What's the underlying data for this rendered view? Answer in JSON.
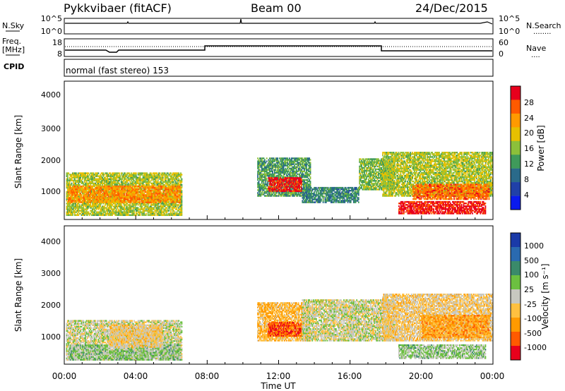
{
  "header": {
    "radar": "Pykkvibaer (fitACF)",
    "beam": "Beam 00",
    "date": "24/Dec/2015"
  },
  "nsky_panel": {
    "left_label": "N.Sky",
    "left_ticks": [
      "10^5",
      "10^0"
    ],
    "right_ticks": [
      "10^5",
      "10^0"
    ],
    "right_label": "N.Search",
    "right_legend_marker": "........"
  },
  "freq_panel": {
    "left_label_line1": "Freq.",
    "left_label_line2": "[MHz]",
    "left_ticks": [
      "18",
      "8"
    ],
    "right_ticks": [
      "60",
      "0"
    ],
    "right_label": "Nave",
    "right_legend_marker": "....",
    "cpid_label": "CPID"
  },
  "cpid_text": "normal (fast stereo) 153",
  "axes": {
    "ylabel": "Slant Range [km]",
    "yticks": [
      "4000",
      "3000",
      "2000",
      "1000"
    ],
    "xticks": [
      "00:00",
      "04:00",
      "08:00",
      "12:00",
      "16:00",
      "20:00",
      "00:00"
    ],
    "xlabel": "Time UT"
  },
  "power_scale": {
    "title": "Power [dB]",
    "labels": [
      "28",
      "24",
      "20",
      "16",
      "12",
      "8",
      "4"
    ],
    "colors": [
      "#e8001c",
      "#ff5a00",
      "#ff9a00",
      "#e6c000",
      "#8cc03a",
      "#3f9a5a",
      "#2a6a8a",
      "#2040a8",
      "#0a1aee"
    ]
  },
  "velocity_scale": {
    "title": "Velocity [m s⁻¹]",
    "labels": [
      "1000",
      "500",
      "100",
      "25",
      "-25",
      "-100",
      "-500",
      "-1000"
    ],
    "colors": [
      "#1a3aa8",
      "#2a6ab0",
      "#3a8a6a",
      "#6cc040",
      "#c8c8c0",
      "#ffc040",
      "#ff9a00",
      "#ff5a00",
      "#e8001c"
    ]
  },
  "chart_data": [
    {
      "type": "heatmap",
      "panel": "power",
      "x_unit": "hours UT",
      "y_unit": "km",
      "xlim": [
        0,
        24
      ],
      "ylim": [
        180,
        4500
      ],
      "value_range_db": [
        0,
        30
      ],
      "regions": [
        {
          "t0": 0.1,
          "t1": 6.6,
          "r0": 300,
          "r1": 1650,
          "value": 16
        },
        {
          "t0": 0.2,
          "t1": 6.5,
          "r0": 700,
          "r1": 1250,
          "value": 22
        },
        {
          "t0": 10.8,
          "t1": 13.8,
          "r0": 900,
          "r1": 2100,
          "value": 12
        },
        {
          "t0": 11.4,
          "t1": 13.3,
          "r0": 1050,
          "r1": 1500,
          "value": 28
        },
        {
          "t0": 13.3,
          "t1": 16.5,
          "r0": 700,
          "r1": 1200,
          "value": 10
        },
        {
          "t0": 16.5,
          "t1": 18.5,
          "r0": 1100,
          "r1": 2100,
          "value": 14
        },
        {
          "t0": 17.8,
          "t1": 24.0,
          "r0": 900,
          "r1": 2300,
          "value": 16
        },
        {
          "t0": 18.7,
          "t1": 23.6,
          "r0": 350,
          "r1": 750,
          "value": 28
        },
        {
          "t0": 19.5,
          "t1": 23.8,
          "r0": 800,
          "r1": 1300,
          "value": 24
        }
      ]
    },
    {
      "type": "heatmap",
      "panel": "velocity",
      "x_unit": "hours UT",
      "y_unit": "km",
      "xlim": [
        0,
        24
      ],
      "ylim": [
        180,
        4500
      ],
      "value_range_ms": [
        -1000,
        1000
      ],
      "regions": [
        {
          "t0": 0.1,
          "t1": 6.6,
          "r0": 300,
          "r1": 1550,
          "value": 0
        },
        {
          "t0": 0.2,
          "t1": 6.5,
          "r0": 300,
          "r1": 800,
          "value": 150
        },
        {
          "t0": 2.5,
          "t1": 5.5,
          "r0": 700,
          "r1": 1400,
          "value": -150
        },
        {
          "t0": 10.8,
          "t1": 13.8,
          "r0": 900,
          "r1": 2100,
          "value": -300
        },
        {
          "t0": 11.4,
          "t1": 13.3,
          "r0": 1050,
          "r1": 1500,
          "value": -700
        },
        {
          "t0": 13.3,
          "t1": 18.5,
          "r0": 900,
          "r1": 2200,
          "value": 0
        },
        {
          "t0": 17.8,
          "t1": 24.0,
          "r0": 900,
          "r1": 2400,
          "value": -150
        },
        {
          "t0": 18.7,
          "t1": 23.6,
          "r0": 350,
          "r1": 800,
          "value": 150
        },
        {
          "t0": 20.0,
          "t1": 23.8,
          "r0": 1000,
          "r1": 1700,
          "value": -400
        }
      ]
    }
  ]
}
